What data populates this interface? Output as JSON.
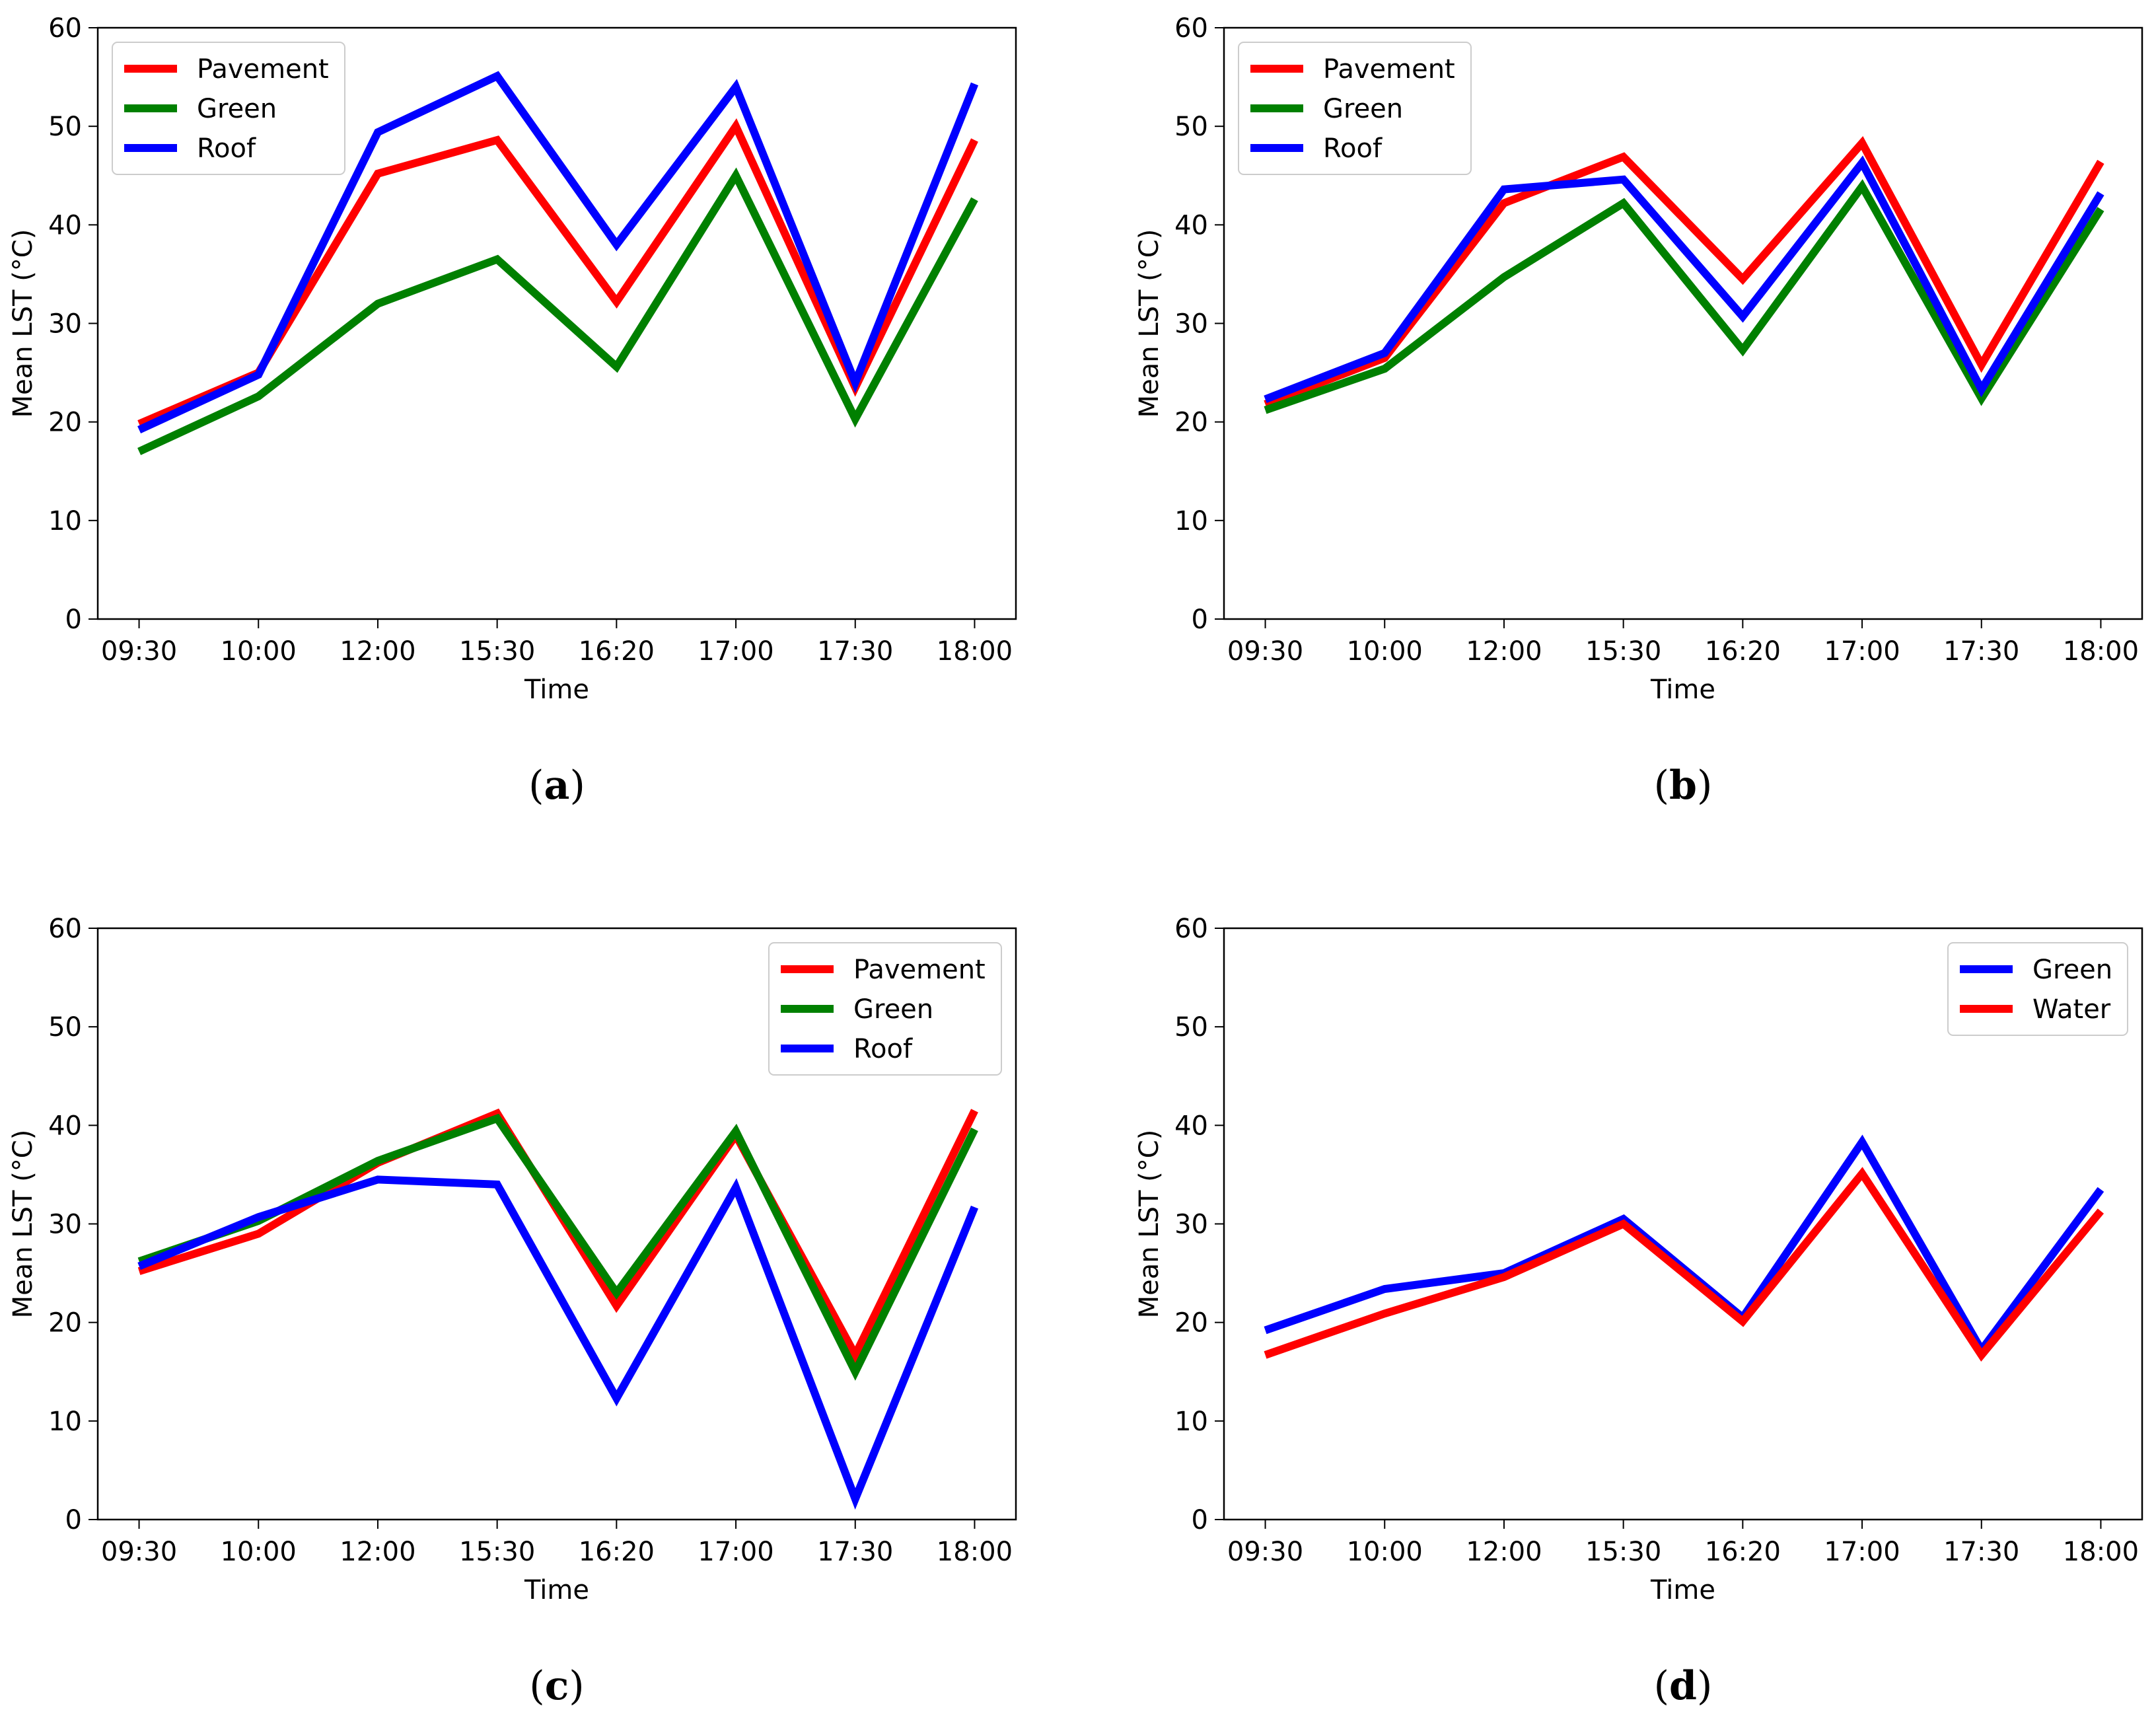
{
  "chart_data": [
    {
      "type": "line",
      "panel_label": "a",
      "categories": [
        "09:30",
        "10:00",
        "12:00",
        "15:30",
        "16:20",
        "17:00",
        "17:30",
        "18:00"
      ],
      "series": [
        {
          "name": "Pavement",
          "color": "#ff0000",
          "values": [
            19.8,
            25.0,
            45.2,
            48.6,
            32.2,
            50.0,
            23.5,
            48.6
          ]
        },
        {
          "name": "Green",
          "color": "#008000",
          "values": [
            17.0,
            22.6,
            32.0,
            36.5,
            25.6,
            45.0,
            20.3,
            42.6
          ]
        },
        {
          "name": "Roof",
          "color": "#0000ff",
          "values": [
            19.2,
            24.8,
            49.4,
            55.1,
            38.0,
            54.0,
            24.0,
            54.3
          ]
        }
      ],
      "xlabel": "Time",
      "ylabel": "Mean LST (°C)",
      "ylim": [
        0,
        60
      ],
      "yticks": [
        "0",
        "10",
        "20",
        "30",
        "40",
        "50",
        "60"
      ],
      "legend_position": "upper-left"
    },
    {
      "type": "line",
      "panel_label": "b",
      "categories": [
        "09:30",
        "10:00",
        "12:00",
        "15:30",
        "16:20",
        "17:00",
        "17:30",
        "18:00"
      ],
      "series": [
        {
          "name": "Pavement",
          "color": "#ff0000",
          "values": [
            21.8,
            26.5,
            42.2,
            46.9,
            34.5,
            48.3,
            25.8,
            46.4
          ]
        },
        {
          "name": "Green",
          "color": "#008000",
          "values": [
            21.2,
            25.4,
            34.7,
            42.2,
            27.3,
            43.9,
            22.4,
            41.6
          ]
        },
        {
          "name": "Roof",
          "color": "#0000ff",
          "values": [
            22.3,
            27.0,
            43.6,
            44.6,
            30.7,
            46.3,
            23.3,
            43.2
          ]
        }
      ],
      "xlabel": "Time",
      "ylabel": "Mean LST (°C)",
      "ylim": [
        0,
        60
      ],
      "yticks": [
        "0",
        "10",
        "20",
        "30",
        "40",
        "50",
        "60"
      ],
      "legend_position": "upper-left"
    },
    {
      "type": "line",
      "panel_label": "c",
      "categories": [
        "09:30",
        "10:00",
        "12:00",
        "15:30",
        "16:20",
        "17:00",
        "17:30",
        "18:00"
      ],
      "series": [
        {
          "name": "Pavement",
          "color": "#ff0000",
          "values": [
            25.2,
            29.0,
            36.2,
            41.2,
            21.7,
            39.0,
            16.7,
            41.5
          ]
        },
        {
          "name": "Green",
          "color": "#008000",
          "values": [
            26.2,
            30.3,
            36.4,
            40.7,
            23.0,
            39.4,
            15.0,
            39.6
          ]
        },
        {
          "name": "Roof",
          "color": "#0000ff",
          "values": [
            25.7,
            30.7,
            34.5,
            34.0,
            12.3,
            33.7,
            2.1,
            31.7
          ]
        }
      ],
      "xlabel": "Time",
      "ylabel": "Mean LST (°C)",
      "ylim": [
        0,
        60
      ],
      "yticks": [
        "0",
        "10",
        "20",
        "30",
        "40",
        "50",
        "60"
      ],
      "legend_position": "upper-right"
    },
    {
      "type": "line",
      "panel_label": "d",
      "categories": [
        "09:30",
        "10:00",
        "12:00",
        "15:30",
        "16:20",
        "17:00",
        "17:30",
        "18:00"
      ],
      "series": [
        {
          "name": "Green",
          "color": "#0000ff",
          "values": [
            19.2,
            23.4,
            25.0,
            30.5,
            20.5,
            38.3,
            17.2,
            33.5
          ]
        },
        {
          "name": "Water",
          "color": "#ff0000",
          "values": [
            16.7,
            20.9,
            24.6,
            30.0,
            20.1,
            35.1,
            16.7,
            31.3
          ]
        }
      ],
      "xlabel": "Time",
      "ylabel": "Mean LST (°C)",
      "ylim": [
        0,
        60
      ],
      "yticks": [
        "0",
        "10",
        "20",
        "30",
        "40",
        "50",
        "60"
      ],
      "legend_position": "upper-right"
    }
  ]
}
